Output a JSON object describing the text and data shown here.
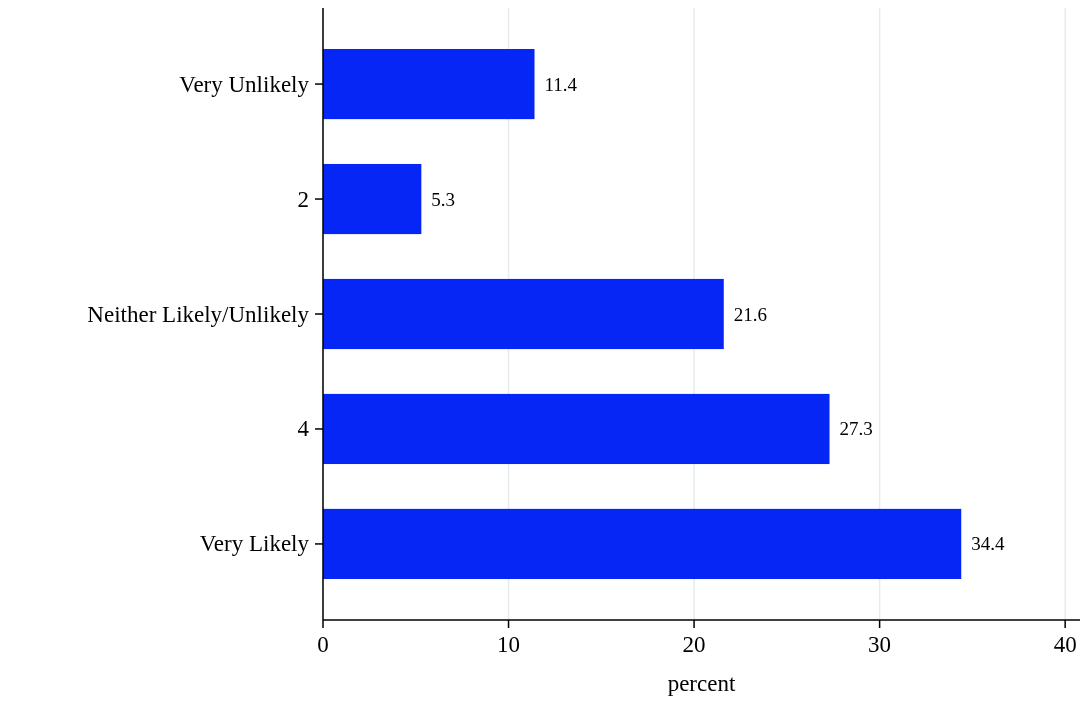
{
  "chart_data": {
    "type": "bar",
    "orientation": "horizontal",
    "xlabel": "percent",
    "categories": [
      "Very Unlikely",
      "2",
      "Neither Likely/Unlikely",
      "4",
      "Very Likely"
    ],
    "values": [
      11.4,
      5.3,
      21.6,
      27.3,
      34.4
    ],
    "color": "#0626f5",
    "xlim": [
      0,
      40.8
    ],
    "xticks": [
      0,
      10,
      20,
      30,
      40
    ],
    "grid": "x",
    "data_labels": true
  }
}
